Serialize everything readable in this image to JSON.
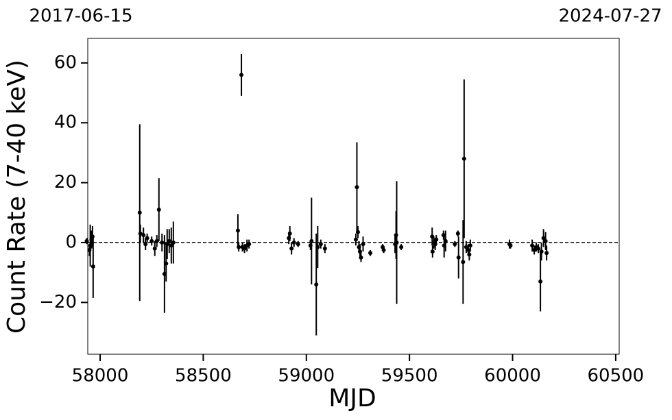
{
  "chart_data": {
    "type": "errorbar",
    "top_labels": [
      "2017-06-15",
      "2024-07-27"
    ],
    "x_label": "MJD",
    "y_label": "Count Rate (7-40 keV)",
    "x": [
      57935,
      57948,
      57952,
      57958,
      57963,
      57966,
      58192,
      58195,
      58210,
      58220,
      58228,
      58250,
      58265,
      58275,
      58285,
      58300,
      58312,
      58320,
      58325,
      58335,
      58345,
      58355,
      58668,
      58672,
      58685,
      58690,
      58700,
      58712,
      58722,
      58915,
      58920,
      58928,
      58940,
      58960,
      59020,
      59025,
      59048,
      59055,
      59070,
      59090,
      59240,
      59245,
      59250,
      59255,
      59260,
      59265,
      59275,
      59310,
      59370,
      59375,
      59430,
      59435,
      59438,
      59460,
      59610,
      59612,
      59618,
      59625,
      59630,
      59665,
      59668,
      59675,
      59720,
      59735,
      59738,
      59760,
      59765,
      59775,
      59785,
      59790,
      59795,
      59985,
      59990,
      60095,
      60105,
      60115,
      60125,
      60135,
      60140,
      60150,
      60160,
      60165
    ],
    "values": [
      0.5,
      -2.5,
      -1,
      1,
      2,
      -8,
      10,
      3,
      2.5,
      -0.5,
      1.5,
      0.5,
      -2,
      0.5,
      11,
      0,
      -10.5,
      -7,
      -0.5,
      0.5,
      -1,
      0,
      4,
      -1.5,
      56,
      -1.5,
      -2,
      -1,
      -0.5,
      1.5,
      3,
      -2,
      0,
      -0.5,
      -1,
      0.5,
      -14,
      -1.5,
      -0.5,
      -2,
      1,
      18.5,
      3.5,
      -1.5,
      -3,
      -5,
      -0.5,
      -3.5,
      -1.5,
      -2.5,
      -0.5,
      2.5,
      0,
      -1.5,
      2,
      -3,
      0,
      -0.5,
      1,
      2.5,
      -1,
      0.5,
      -0.5,
      3,
      -5,
      -6.5,
      28,
      -1.5,
      -2.5,
      -4,
      -1,
      -0.5,
      -1,
      -1,
      -2.5,
      -1.5,
      -2,
      -13,
      -3,
      1.5,
      0.5,
      -3.5
    ],
    "errors": [
      1,
      2,
      7,
      3,
      3.5,
      10.5,
      29.5,
      3,
      2.5,
      2,
      1.5,
      1.5,
      2.5,
      2,
      10.5,
      3,
      13,
      6,
      5,
      4,
      6,
      7,
      5.5,
      1.5,
      7,
      1.5,
      1.5,
      2,
      1.5,
      2,
      2.5,
      2,
      1.5,
      1,
      1.5,
      14.5,
      17,
      7,
      1.5,
      1.5,
      2,
      15,
      2,
      2,
      2.5,
      1.5,
      2.5,
      1,
      1,
      1,
      3,
      8,
      20.5,
      1,
      3,
      2,
      2,
      2,
      1.5,
      1.5,
      4,
      3.5,
      1,
      1,
      7,
      14,
      26.5,
      2,
      2,
      2,
      2,
      1.5,
      1,
      2,
      1.5,
      1.5,
      1.5,
      10,
      3,
      3,
      3,
      2.5
    ],
    "color": "#000000",
    "xlim": [
      57940,
      60517
    ],
    "xticks": [
      58000,
      58500,
      59000,
      59500,
      60000,
      60500
    ],
    "ylim": [
      -37.3,
      68.2
    ],
    "yticks": [
      {
        "value": -20,
        "label": "−20"
      },
      0,
      20,
      40,
      60
    ],
    "zero_line": true
  }
}
